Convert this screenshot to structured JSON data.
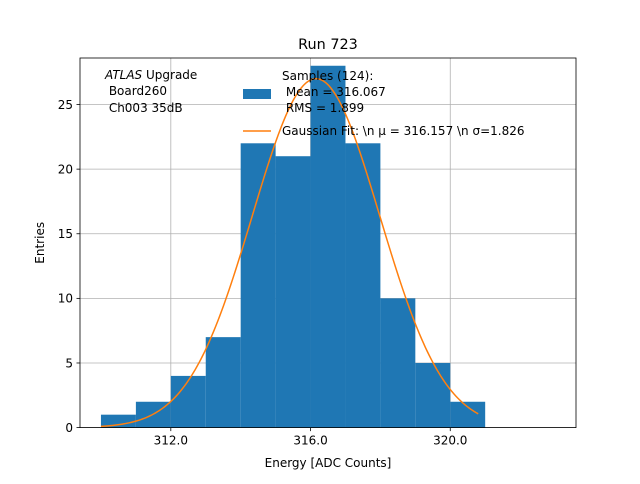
{
  "chart_data": {
    "type": "bar",
    "title": "Run 723",
    "xlabel": "Energy [ADC Counts]",
    "ylabel": "Entries",
    "xlim": [
      309.4,
      323.6
    ],
    "ylim": [
      0,
      28.6
    ],
    "grid": true,
    "x_ticks": [
      312.0,
      316.0,
      320.0
    ],
    "x_tick_labels": [
      "312.0",
      "316.0",
      "320.0"
    ],
    "y_ticks": [
      0,
      5,
      10,
      15,
      20,
      25
    ],
    "y_tick_labels": [
      "0",
      "5",
      "10",
      "15",
      "20",
      "25"
    ],
    "bin_edges": [
      310.0,
      311.0,
      312.0,
      313.0,
      314.0,
      315.0,
      316.0,
      317.0,
      318.0,
      319.0,
      320.0,
      321.0
    ],
    "counts": [
      1,
      2,
      4,
      7,
      22,
      21,
      28,
      22,
      10,
      5,
      2
    ],
    "histogram_color": "#1f77b4",
    "fit": {
      "mu": 316.157,
      "sigma": 1.826,
      "amplitude": 27.0,
      "x_range": [
        310.0,
        320.8
      ],
      "color": "#ff7f0e"
    },
    "annotation": {
      "italic": "ATLAS",
      "text": " Upgrade",
      "line2": " Board260",
      "line3": " Ch003 35dB"
    },
    "legend": {
      "placement": "top-right",
      "entries": [
        {
          "lines": [
            "Samples (124):",
            " Mean = 316.067",
            " RMS = 1.899"
          ],
          "kind": "patch"
        },
        {
          "lines": [
            "Gaussian Fit: \\n μ = 316.157 \\n σ=1.826"
          ],
          "kind": "line"
        }
      ]
    }
  }
}
